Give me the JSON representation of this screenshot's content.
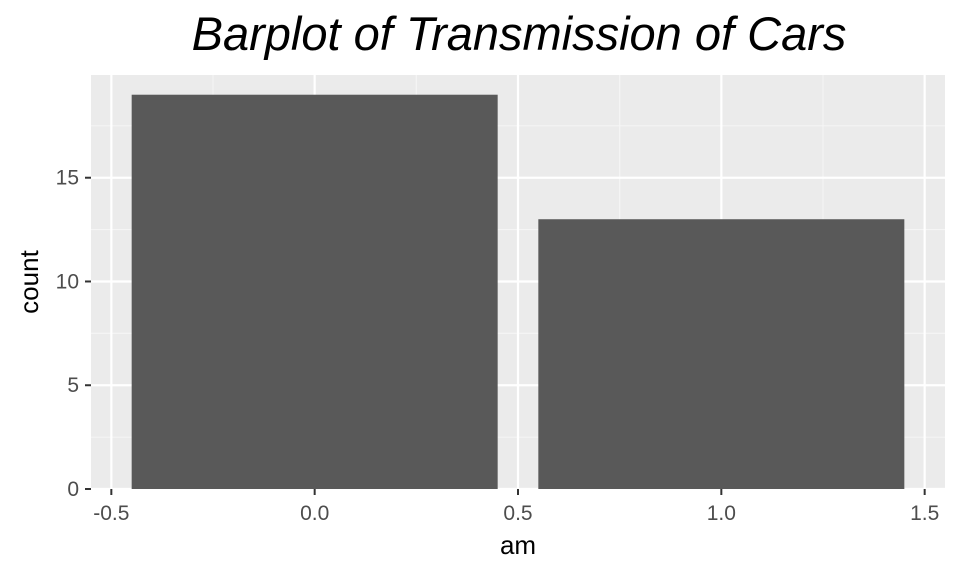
{
  "chart_data": {
    "type": "bar",
    "title": "Barplot of Transmission of Cars",
    "xlabel": "am",
    "ylabel": "count",
    "x": [
      0,
      1
    ],
    "values": [
      19,
      13
    ],
    "bar_width": 0.9,
    "xlim": [
      -0.55,
      1.55
    ],
    "ylim": [
      0,
      19.95
    ],
    "x_ticks": [
      -0.5,
      0,
      0.5,
      1,
      1.5
    ],
    "x_tick_labels": [
      "-0.5",
      "0.0",
      "0.5",
      "1.0",
      "1.5"
    ],
    "y_ticks": [
      0,
      5,
      10,
      15
    ],
    "y_tick_labels": [
      "0",
      "5",
      "10",
      "15"
    ],
    "grid": true,
    "legend": "none",
    "colors": {
      "bar": "#595959",
      "panel": "#ebebeb",
      "grid_major": "#ffffff",
      "grid_minor": "#f5f5f5",
      "tick_text": "#4d4d4d",
      "title_text": "#000000"
    }
  }
}
